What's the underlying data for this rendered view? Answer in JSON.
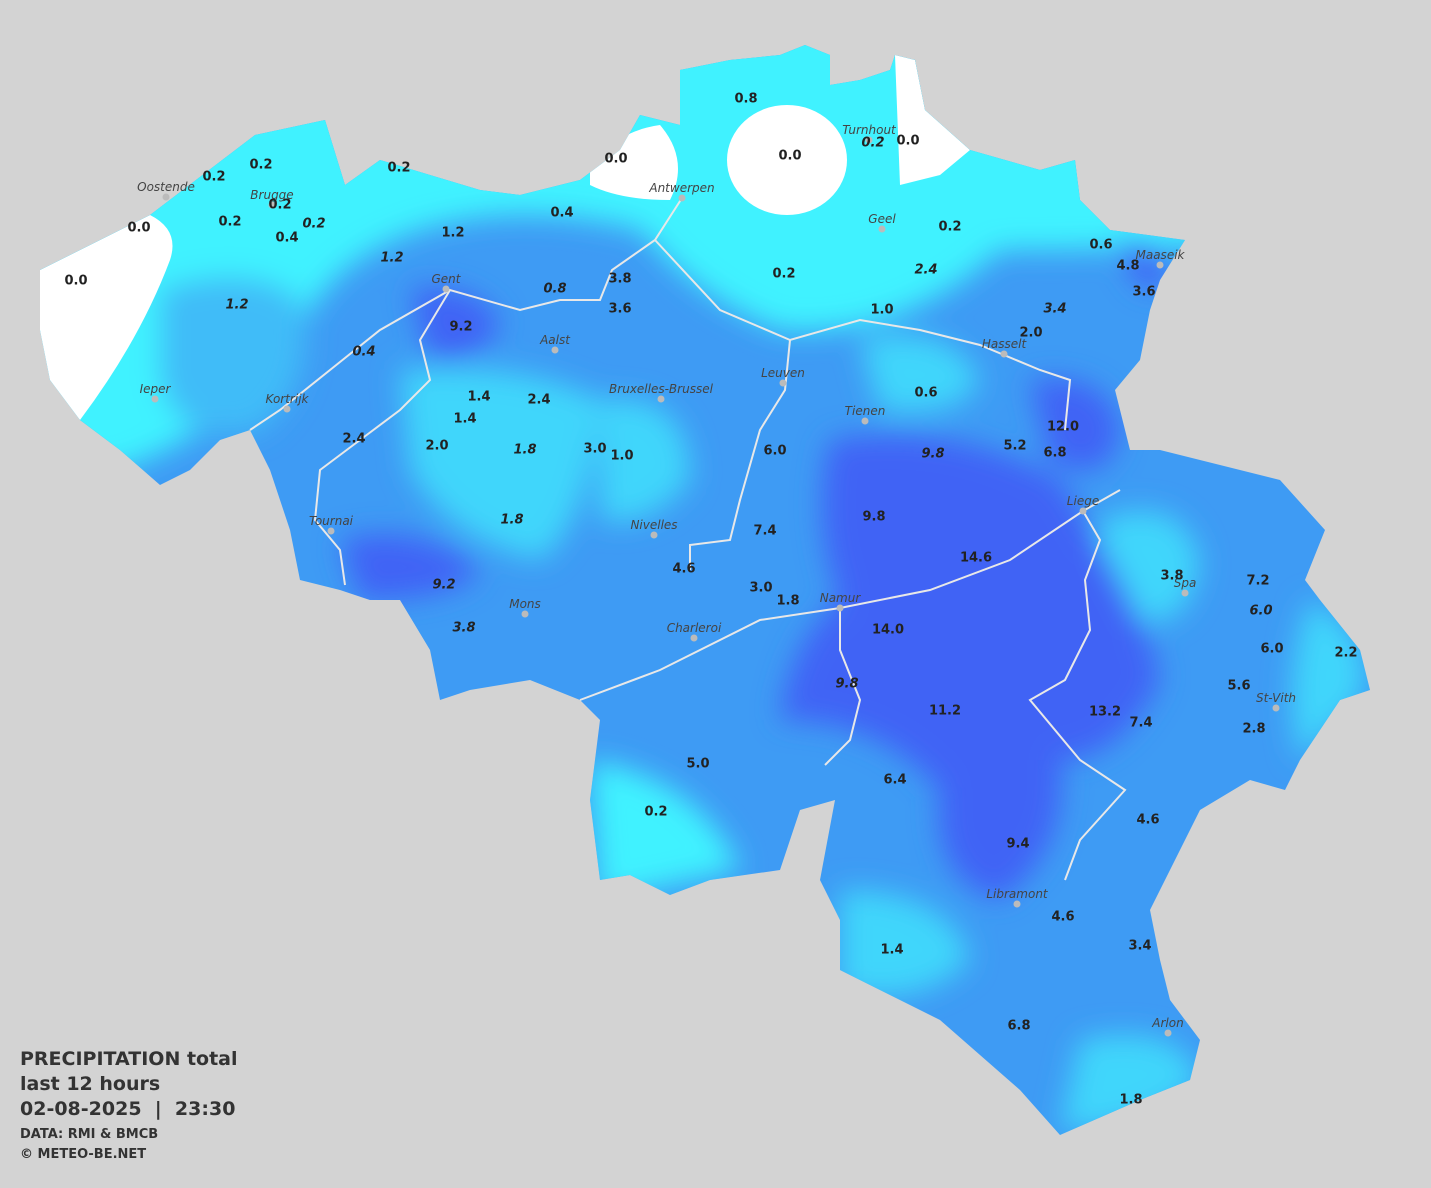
{
  "header": {
    "title": "PRECIPITATION total",
    "subtitle": "last 12 hours",
    "timestamp": "02-08-2025  |  23:30",
    "source": "DATA: RMI & BMCB",
    "credit": "© METEO-BE.NET"
  },
  "cities": [
    "Oostende",
    "Brugge",
    "Antwerpen",
    "Turnhout",
    "Geel",
    "Maaseik",
    "Gent",
    "Aalst",
    "Hasselt",
    "Leuven",
    "Bruxelles-Brussel",
    "Ieper",
    "Kortrijk",
    "Tienen",
    "Liege",
    "Tournai",
    "Nivelles",
    "Mons",
    "Spa",
    "Namur",
    "Charleroi",
    "St-Vith",
    "Libramont",
    "Arlon"
  ],
  "stations": [
    {
      "label": "0.8",
      "italic": false
    },
    {
      "label": "0.0",
      "italic": false
    },
    {
      "label": "0.0",
      "italic": false
    },
    {
      "label": "0.2",
      "italic": true
    },
    {
      "label": "0.0",
      "italic": false
    },
    {
      "label": "0.2",
      "italic": false
    },
    {
      "label": "0.2",
      "italic": false
    },
    {
      "label": "0.2",
      "italic": false
    },
    {
      "label": "0.2",
      "italic": false
    },
    {
      "label": "0.2",
      "italic": false
    },
    {
      "label": "0.4",
      "italic": false
    },
    {
      "label": "0.2",
      "italic": true
    },
    {
      "label": "0.0",
      "italic": false
    },
    {
      "label": "0.0",
      "italic": false
    },
    {
      "label": "1.2",
      "italic": false
    },
    {
      "label": "0.4",
      "italic": false
    },
    {
      "label": "1.2",
      "italic": true
    },
    {
      "label": "1.2",
      "italic": true
    },
    {
      "label": "0.8",
      "italic": true
    },
    {
      "label": "3.8",
      "italic": false
    },
    {
      "label": "3.6",
      "italic": false
    },
    {
      "label": "9.2",
      "italic": false
    },
    {
      "label": "0.4",
      "italic": true
    },
    {
      "label": "0.2",
      "italic": false
    },
    {
      "label": "0.2",
      "italic": false
    },
    {
      "label": "2.4",
      "italic": true
    },
    {
      "label": "0.6",
      "italic": false
    },
    {
      "label": "4.8",
      "italic": false
    },
    {
      "label": "3.6",
      "italic": false
    },
    {
      "label": "1.0",
      "italic": false
    },
    {
      "label": "3.4",
      "italic": true
    },
    {
      "label": "2.0",
      "italic": false
    },
    {
      "label": "0.6",
      "italic": false
    },
    {
      "label": "1.4",
      "italic": false
    },
    {
      "label": "1.4",
      "italic": false
    },
    {
      "label": "2.4",
      "italic": false
    },
    {
      "label": "2.4",
      "italic": false
    },
    {
      "label": "2.0",
      "italic": false
    },
    {
      "label": "1.8",
      "italic": true
    },
    {
      "label": "3.0",
      "italic": false
    },
    {
      "label": "1.0",
      "italic": false
    },
    {
      "label": "6.0",
      "italic": false
    },
    {
      "label": "9.8",
      "italic": true
    },
    {
      "label": "5.2",
      "italic": false
    },
    {
      "label": "12.0",
      "italic": false
    },
    {
      "label": "6.8",
      "italic": false
    },
    {
      "label": "1.8",
      "italic": true
    },
    {
      "label": "9.8",
      "italic": false
    },
    {
      "label": "7.4",
      "italic": false
    },
    {
      "label": "4.6",
      "italic": false
    },
    {
      "label": "14.6",
      "italic": false
    },
    {
      "label": "9.2",
      "italic": true
    },
    {
      "label": "3.0",
      "italic": false
    },
    {
      "label": "1.8",
      "italic": false
    },
    {
      "label": "3.8",
      "italic": false
    },
    {
      "label": "7.2",
      "italic": false
    },
    {
      "label": "6.0",
      "italic": true
    },
    {
      "label": "3.8",
      "italic": true
    },
    {
      "label": "14.0",
      "italic": false
    },
    {
      "label": "6.0",
      "italic": false
    },
    {
      "label": "2.2",
      "italic": false
    },
    {
      "label": "5.6",
      "italic": false
    },
    {
      "label": "9.8",
      "italic": true
    },
    {
      "label": "11.2",
      "italic": false
    },
    {
      "label": "13.2",
      "italic": false
    },
    {
      "label": "7.4",
      "italic": false
    },
    {
      "label": "2.8",
      "italic": false
    },
    {
      "label": "5.0",
      "italic": false
    },
    {
      "label": "6.4",
      "italic": false
    },
    {
      "label": "0.2",
      "italic": false
    },
    {
      "label": "4.6",
      "italic": false
    },
    {
      "label": "9.4",
      "italic": false
    },
    {
      "label": "4.6",
      "italic": false
    },
    {
      "label": "1.4",
      "italic": false
    },
    {
      "label": "3.4",
      "italic": false
    },
    {
      "label": "6.8",
      "italic": false
    },
    {
      "label": "1.8",
      "italic": false
    }
  ]
}
